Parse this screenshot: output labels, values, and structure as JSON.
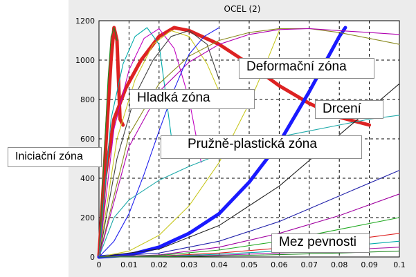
{
  "chart_data": {
    "type": "line",
    "title": "OCEL (2)",
    "xlabel": "",
    "ylabel": "",
    "xlim": [
      0,
      0.1
    ],
    "ylim": [
      0,
      1200
    ],
    "xticks": [
      "0",
      "0.01",
      "0.02",
      "0.03",
      "0.04",
      "0.05",
      "0.06",
      "0.07",
      "0.08",
      "0.09",
      "0.1"
    ],
    "yticks": [
      "0",
      "200",
      "400",
      "600",
      "800",
      "1000",
      "1200"
    ],
    "grid": true,
    "series": [
      {
        "color": "#dd2222",
        "weight": "bold",
        "x": [
          0,
          0.004,
          0.005,
          0.006,
          0.0065,
          0.007,
          0.008
        ],
        "y": [
          0,
          1000,
          1165,
          1100,
          900,
          700,
          670
        ]
      },
      {
        "color": "#dd2222",
        "weight": "bold",
        "x": [
          0,
          0.002,
          0.005,
          0.009,
          0.014,
          0.02,
          0.025,
          0.03,
          0.04,
          0.05,
          0.06,
          0.07,
          0.08,
          0.09
        ],
        "y": [
          0,
          400,
          700,
          860,
          1000,
          1120,
          1165,
          1150,
          1080,
          980,
          870,
          780,
          710,
          670
        ]
      },
      {
        "color": "#1a1aff",
        "weight": "bold",
        "x": [
          0,
          0.01,
          0.02,
          0.03,
          0.04,
          0.05,
          0.06,
          0.07,
          0.08,
          0.082
        ],
        "y": [
          0,
          10,
          50,
          120,
          220,
          380,
          580,
          840,
          1120,
          1165
        ]
      },
      {
        "color": "#228822",
        "x": [
          0,
          0.003,
          0.004,
          0.005,
          0.006
        ],
        "y": [
          0,
          900,
          1120,
          1165,
          1100
        ]
      },
      {
        "color": "#00aaaa",
        "x": [
          0,
          0.004,
          0.008,
          0.012,
          0.016,
          0.02,
          0.024
        ],
        "y": [
          0,
          700,
          980,
          1120,
          1165,
          1080,
          620
        ]
      },
      {
        "color": "#c000c0",
        "x": [
          0,
          0.005,
          0.01,
          0.015,
          0.02,
          0.025,
          0.03,
          0.034
        ],
        "y": [
          0,
          650,
          950,
          1110,
          1160,
          1060,
          800,
          480
        ]
      },
      {
        "color": "#c8c820",
        "x": [
          0,
          0.006,
          0.012,
          0.018,
          0.024,
          0.03,
          0.036,
          0.042
        ],
        "y": [
          0,
          600,
          900,
          1080,
          1150,
          1120,
          980,
          770
        ]
      },
      {
        "color": "#404040",
        "x": [
          0,
          0.006,
          0.012,
          0.018,
          0.024,
          0.03,
          0.036,
          0.04
        ],
        "y": [
          0,
          500,
          820,
          1000,
          1120,
          1150,
          1080,
          900
        ]
      },
      {
        "color": "#8a8a20",
        "x": [
          0,
          0.01,
          0.02,
          0.03,
          0.04,
          0.05,
          0.06,
          0.07,
          0.08,
          0.09,
          0.1
        ],
        "y": [
          0,
          620,
          880,
          1020,
          1100,
          1140,
          1160,
          1160,
          1140,
          1110,
          1080
        ]
      },
      {
        "color": "#b000b0",
        "x": [
          0,
          0.01,
          0.02,
          0.03,
          0.04,
          0.05,
          0.06,
          0.07,
          0.08,
          0.09,
          0.1
        ],
        "y": [
          0,
          560,
          840,
          990,
          1080,
          1130,
          1155,
          1160,
          1150,
          1140,
          1130
        ]
      },
      {
        "color": "#20aaaa",
        "x": [
          0,
          0.005,
          0.01,
          0.02,
          0.03,
          0.04,
          0.05,
          0.06,
          0.07,
          0.08,
          0.09,
          0.1
        ],
        "y": [
          0,
          200,
          290,
          390,
          460,
          520,
          570,
          610,
          640,
          670,
          700,
          720
        ]
      },
      {
        "color": "#2020ee",
        "x": [
          0,
          0.005,
          0.01,
          0.015,
          0.02,
          0.025,
          0.03,
          0.035,
          0.04
        ],
        "y": [
          0,
          80,
          220,
          420,
          640,
          850,
          1030,
          1120,
          1165
        ]
      },
      {
        "color": "#c8c820",
        "x": [
          0,
          0.01,
          0.02,
          0.03,
          0.04,
          0.05,
          0.055,
          0.06
        ],
        "y": [
          0,
          30,
          110,
          260,
          480,
          780,
          960,
          1150
        ]
      },
      {
        "color": "#202020",
        "x": [
          0,
          0.02,
          0.04,
          0.06,
          0.08,
          0.1
        ],
        "y": [
          0,
          40,
          160,
          360,
          620,
          880
        ]
      },
      {
        "color": "#2020aa",
        "x": [
          0,
          0.02,
          0.04,
          0.06,
          0.08,
          0.1
        ],
        "y": [
          0,
          20,
          80,
          180,
          310,
          440
        ]
      },
      {
        "color": "#a000a0",
        "x": [
          0,
          0.02,
          0.04,
          0.06,
          0.08,
          0.1
        ],
        "y": [
          0,
          10,
          50,
          120,
          210,
          320
        ]
      },
      {
        "color": "#22aa22",
        "x": [
          0,
          0.02,
          0.04,
          0.06,
          0.08,
          0.1
        ],
        "y": [
          0,
          8,
          35,
          80,
          140,
          200
        ]
      },
      {
        "color": "#dd2222",
        "x": [
          0,
          0.02,
          0.04,
          0.06,
          0.08,
          0.1
        ],
        "y": [
          0,
          5,
          20,
          45,
          80,
          120
        ]
      },
      {
        "color": "#00aaaa",
        "x": [
          0,
          0.02,
          0.04,
          0.06,
          0.08,
          0.1
        ],
        "y": [
          0,
          3,
          14,
          30,
          52,
          80
        ]
      },
      {
        "color": "#aa22aa",
        "x": [
          0,
          0.02,
          0.04,
          0.06,
          0.08,
          0.1
        ],
        "y": [
          0,
          2,
          9,
          20,
          35,
          50
        ]
      },
      {
        "color": "#228822",
        "x": [
          0,
          0.02,
          0.04,
          0.06,
          0.08,
          0.1
        ],
        "y": [
          0,
          1,
          5,
          12,
          20,
          30
        ]
      }
    ],
    "annotations": [
      {
        "text": "Deformační  zóna",
        "x": 0.047,
        "y": 960
      },
      {
        "text": "Hladká zóna",
        "x": 0.011,
        "y": 800
      },
      {
        "text": "Drcení",
        "x": 0.07,
        "y": 730
      },
      {
        "text": "Pružně-plastická zóna",
        "x": 0.02,
        "y": 555
      },
      {
        "text": "Mez pevnosti",
        "x": 0.057,
        "y": 115
      },
      {
        "text": "Iniciační zóna",
        "x": -0.031,
        "y": 505
      }
    ]
  }
}
